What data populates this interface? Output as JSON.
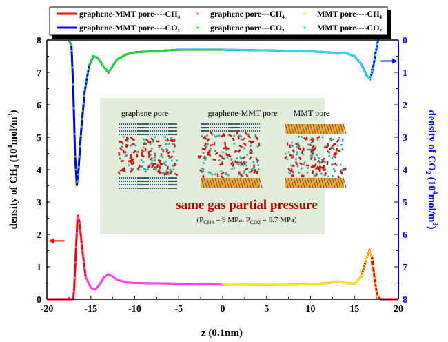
{
  "chart_data": {
    "type": "line",
    "xlabel": "z (0.1nm)",
    "ylabel_left": "density of CH4 (10^4 mol/m^3)",
    "ylabel_right": "density of CO2 (10^4 mol/m^3)",
    "xlim": [
      -20,
      20
    ],
    "ylim_left": [
      0,
      8
    ],
    "ylim_right": [
      8,
      0
    ],
    "xticks": [
      "-20",
      "-15",
      "-10",
      "-5",
      "0",
      "5",
      "10",
      "15",
      "20"
    ],
    "yticks_left": [
      "0",
      "1",
      "2",
      "3",
      "4",
      "5",
      "6",
      "7",
      "8"
    ],
    "yticks_right": [
      "0",
      "1",
      "2",
      "3",
      "4",
      "5",
      "6",
      "7",
      "8"
    ],
    "grid": false,
    "legend_placement": "top",
    "colors": {
      "red": "#ff0000",
      "blue": "#0000ff",
      "magenta": "#ff44ff",
      "green": "#22dd22",
      "yellow": "#ffee00",
      "cyan": "#22e0f0",
      "right_axis": "#0000ff",
      "inset_bg": "#e2eedb",
      "inset_title": "#c00000"
    },
    "series": [
      {
        "name": "graphene-MMT pore----CH4",
        "axis": "left",
        "style": "line",
        "color": "#ff0000",
        "points": [
          [
            -20,
            0
          ],
          [
            -17,
            0
          ],
          [
            -16.9,
            0.3
          ],
          [
            -16.7,
            1.5
          ],
          [
            -16.5,
            2.6
          ],
          [
            -16.3,
            2.4
          ],
          [
            -16,
            1.6
          ],
          [
            -15.6,
            0.7
          ],
          [
            -15,
            0.35
          ],
          [
            -14.5,
            0.3
          ],
          [
            -14,
            0.45
          ],
          [
            -13.5,
            0.68
          ],
          [
            -13,
            0.77
          ],
          [
            -12.5,
            0.7
          ],
          [
            -12,
            0.6
          ],
          [
            -11,
            0.52
          ],
          [
            -10,
            0.5
          ],
          [
            -5,
            0.48
          ],
          [
            0,
            0.45
          ],
          [
            5,
            0.44
          ],
          [
            10,
            0.46
          ],
          [
            12,
            0.5
          ],
          [
            13,
            0.55
          ],
          [
            14,
            0.5
          ],
          [
            15,
            0.48
          ],
          [
            15.8,
            0.7
          ],
          [
            16.3,
            1.2
          ],
          [
            16.7,
            1.5
          ],
          [
            17,
            1.3
          ],
          [
            17.3,
            0.6
          ],
          [
            17.6,
            0.1
          ],
          [
            18,
            0
          ],
          [
            20,
            0
          ]
        ]
      },
      {
        "name": "graphene-MMT pore----CO2",
        "axis": "right",
        "style": "line",
        "color": "#0000ff",
        "points": [
          [
            -17.5,
            0
          ],
          [
            -17.2,
            0.2
          ],
          [
            -17,
            1.5
          ],
          [
            -16.8,
            3.5
          ],
          [
            -16.6,
            4.5
          ],
          [
            -16.4,
            4.0
          ],
          [
            -16.1,
            2.8
          ],
          [
            -15.7,
            1.6
          ],
          [
            -15.2,
            0.8
          ],
          [
            -14.7,
            0.5
          ],
          [
            -14.2,
            0.55
          ],
          [
            -13.6,
            0.8
          ],
          [
            -13,
            1.0
          ],
          [
            -12.5,
            0.8
          ],
          [
            -12,
            0.6
          ],
          [
            -11,
            0.45
          ],
          [
            -10,
            0.38
          ],
          [
            -5,
            0.3
          ],
          [
            0,
            0.3
          ],
          [
            5,
            0.32
          ],
          [
            10,
            0.35
          ],
          [
            12,
            0.38
          ],
          [
            13,
            0.42
          ],
          [
            14,
            0.4
          ],
          [
            15,
            0.5
          ],
          [
            15.8,
            0.75
          ],
          [
            16.4,
            1.1
          ],
          [
            16.8,
            1.2
          ],
          [
            17.1,
            0.9
          ],
          [
            17.4,
            0.4
          ],
          [
            17.7,
            0
          ],
          [
            17.8,
            0
          ]
        ]
      },
      {
        "name": "graphene pore---CH4",
        "axis": "left",
        "style": "dots",
        "color": "#ff44ff",
        "range": [
          -17,
          0
        ],
        "source": 0
      },
      {
        "name": "graphene pore---CO2",
        "axis": "left",
        "style": "dots",
        "color": "#22dd22",
        "range": [
          -17.5,
          0
        ],
        "source": 1
      },
      {
        "name": "MMT pore----CH4",
        "axis": "left",
        "style": "dots",
        "color": "#ffee00",
        "range": [
          0,
          17.7
        ],
        "source": 0
      },
      {
        "name": "MMT pore----CO2",
        "axis": "right",
        "style": "dots",
        "color": "#22e0f0",
        "range": [
          0,
          17.8
        ],
        "source": 1
      }
    ],
    "annotations": {
      "left_arrow": "points to left axis (CH4)",
      "right_arrow": "points to right axis (CO2)"
    },
    "inset": {
      "labels": [
        "graphene pore",
        "graphene-MMT pore",
        "MMT pore"
      ],
      "title": "same gas partial pressure",
      "subtitle_parts": [
        "(P",
        "CH4",
        " = 9 MPa, P",
        "CO2",
        " = 6.7 MPa)"
      ]
    }
  },
  "legend": {
    "items": [
      {
        "pre": "graphene-MMT pore----CH",
        "sub": "4"
      },
      {
        "pre": "graphene pore---CH",
        "sub": "4"
      },
      {
        "pre": "MMT pore----CH",
        "sub": "4"
      },
      {
        "pre": "graphene-MMT pore----CO",
        "sub": "2"
      },
      {
        "pre": "graphene pore---CO",
        "sub": "2"
      },
      {
        "pre": "MMT pore----CO",
        "sub": "2"
      }
    ]
  },
  "axes": {
    "x_label": "z (0.1nm)",
    "left_label": [
      "density of CH",
      "4",
      " (10",
      "4",
      "mol/m",
      "3",
      ")"
    ],
    "right_label": [
      "density of CO",
      "2",
      " (10",
      "4",
      "mol/m",
      "3",
      ")"
    ]
  }
}
